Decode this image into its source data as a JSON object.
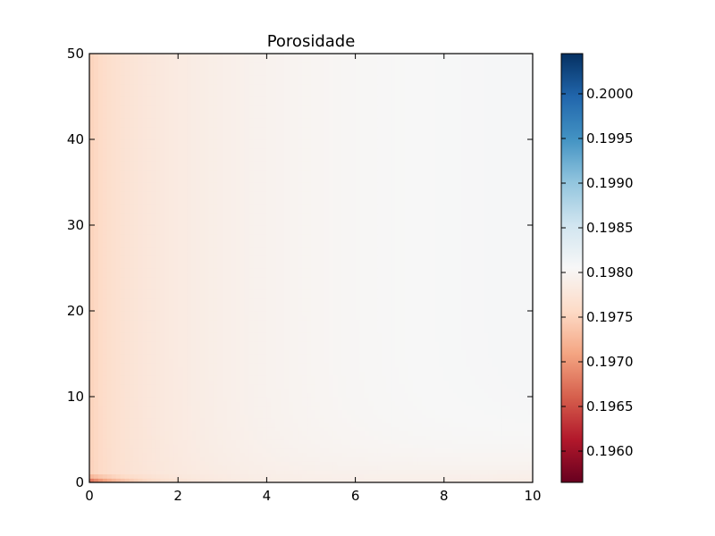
{
  "chart_data": {
    "type": "heatmap",
    "title": "Porosidade",
    "xlabel": "",
    "ylabel": "",
    "xlim": [
      0,
      10
    ],
    "ylim": [
      0,
      50
    ],
    "x_ticks": [
      0,
      2,
      4,
      6,
      8,
      10
    ],
    "y_ticks": [
      0,
      10,
      20,
      30,
      40,
      50
    ],
    "x_tick_labels": [
      "0",
      "2",
      "4",
      "6",
      "8",
      "10"
    ],
    "y_tick_labels": [
      "0",
      "10",
      "20",
      "30",
      "40",
      "50"
    ],
    "colormap": "RdBu",
    "vmin": 0.19565,
    "vmax": 0.20045,
    "colorbar_ticks": [
      0.196,
      0.1965,
      0.197,
      0.1975,
      0.198,
      0.1985,
      0.199,
      0.1995,
      0.2
    ],
    "colorbar_tick_labels": [
      "0.1960",
      "0.1965",
      "0.1970",
      "0.1975",
      "0.1980",
      "0.1985",
      "0.1990",
      "0.1995",
      "0.2000"
    ],
    "field_description": "Porosity lowest near x=0 (left edge) and near y=0 (bottom), rising smoothly toward ~0.1981 at upper right; minimum ~0.1963 in corner strip at y<1, x<1.5",
    "sample_values": {
      "left_edge_top": 0.1976,
      "left_edge_mid": 0.1976,
      "center": 0.19785,
      "right_top": 0.1981,
      "right_mid": 0.1981,
      "bottom_right": 0.1978,
      "bottom_left_corner": 0.1963
    }
  }
}
